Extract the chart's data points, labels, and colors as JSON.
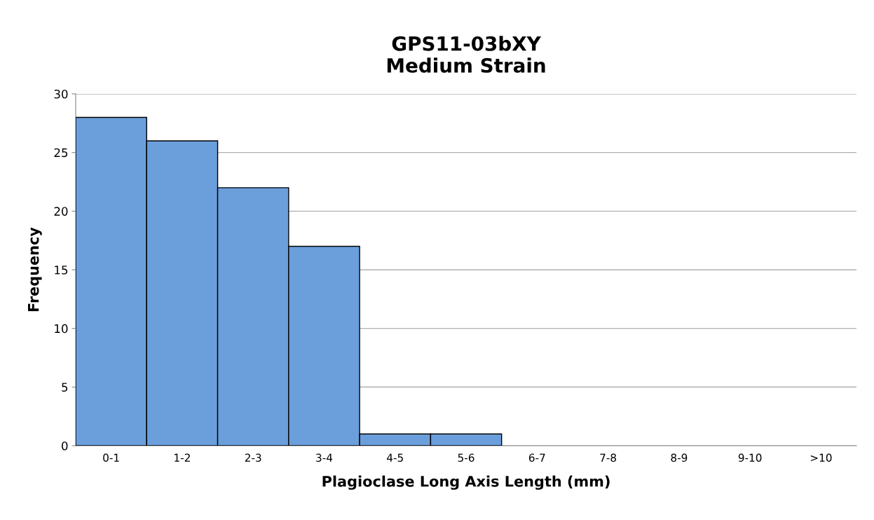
{
  "chart_data": {
    "type": "bar",
    "title": "GPS11-03bXY\nMedium Strain",
    "xlabel": "Plagioclase Long Axis Length (mm)",
    "ylabel": "Frequency",
    "categories": [
      "0-1",
      "1-2",
      "2-3",
      "3-4",
      "4-5",
      "5-6",
      "6-7",
      "7-8",
      "8-9",
      "9-10",
      ">10"
    ],
    "values": [
      28,
      26,
      22,
      17,
      1,
      1,
      0,
      0,
      0,
      0,
      0
    ],
    "color": "#6a9fdc",
    "ylim": [
      0,
      30
    ],
    "yticks": [
      0,
      5,
      10,
      15,
      20,
      25,
      30
    ],
    "grid": "y",
    "legend": false
  }
}
